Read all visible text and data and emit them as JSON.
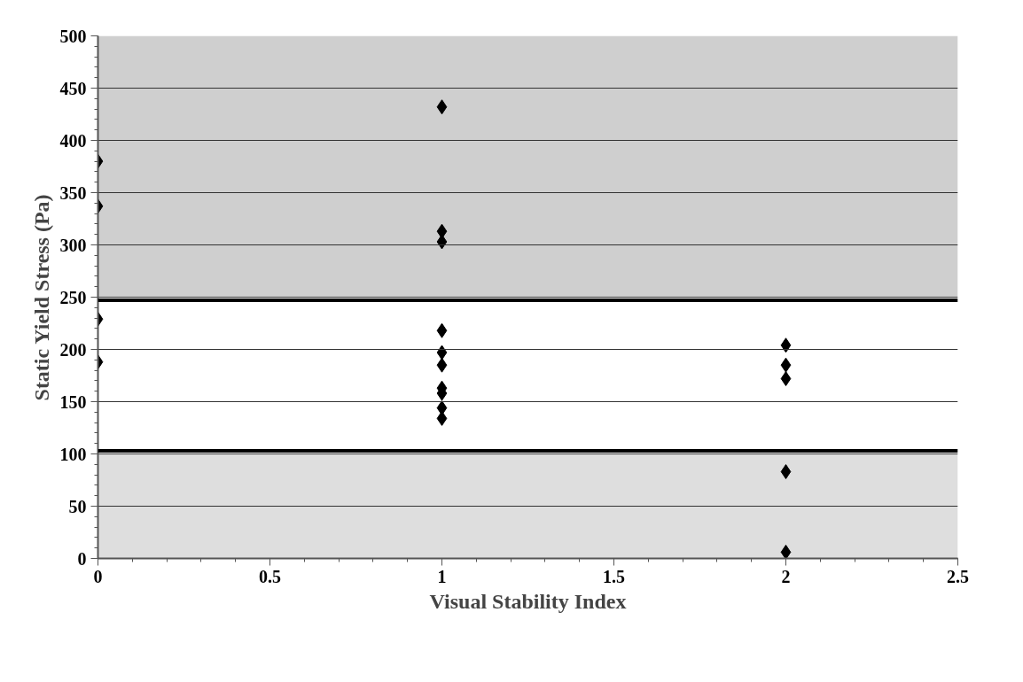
{
  "chart_data": {
    "type": "scatter",
    "xlabel": "Visual Stability Index",
    "ylabel": "Static Yield Stress (Pa)",
    "x": [
      0,
      0,
      0,
      0,
      1,
      1,
      1,
      1,
      1,
      1,
      1,
      1,
      1,
      1,
      2,
      2,
      2,
      2,
      2
    ],
    "series": [
      {
        "color": "#000000",
        "values": [
          380,
          337,
          229,
          188,
          432,
          313,
          303,
          218,
          197,
          185,
          163,
          158,
          144,
          134,
          204,
          185,
          172,
          83,
          6
        ]
      }
    ],
    "marker": "diamond",
    "xlim": [
      0,
      2.5
    ],
    "xticks": [
      0,
      0.5,
      1,
      1.5,
      2,
      2.5
    ],
    "ylim": [
      0,
      500
    ],
    "yticks": [
      0,
      50,
      100,
      150,
      200,
      250,
      300,
      350,
      400,
      450,
      500
    ],
    "grid": "y",
    "bands": [
      {
        "axis": "y",
        "from": 250,
        "to": 500,
        "color": "#cfcfcf"
      },
      {
        "axis": "y",
        "from": 0,
        "to": 100,
        "color": "#dedede"
      }
    ],
    "ref_lines": [
      {
        "axis": "y",
        "value": 247,
        "color": "#000000"
      },
      {
        "axis": "y",
        "value": 103,
        "color": "#000000"
      }
    ]
  }
}
